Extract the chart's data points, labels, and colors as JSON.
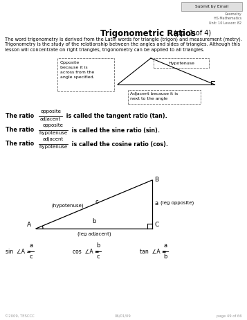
{
  "title_bold": "Trigonometric Ratios",
  "title_normal": " (pp. 1 of 4)",
  "subtitle_top_right": [
    "Geometry",
    "HS Mathematics",
    "Unit: 10 Lesson: 82"
  ],
  "button_text": "Submit by Email",
  "intro_lines": [
    "The word trigonometry is derived from the Latin words for triangle (trigon) and measurement (metry).",
    "Trigonometry is the study of the relationship between the angles and sides of triangles. Although this",
    "lesson will concentrate on right triangles, trigonometry can be applied to all triangles."
  ],
  "ratio1_num": "opposite",
  "ratio1_den": "adjacent",
  "ratio1_suffix": " is called the tangent ratio (tan).",
  "ratio2_num": "opposite",
  "ratio2_den": "hypotenuse",
  "ratio2_suffix": " is called the sine ratio (sin).",
  "ratio3_num": "adjacent",
  "ratio3_den": "hypotenuse",
  "ratio3_suffix": " is called the cosine ratio (cos).",
  "footer_left": "©2009, TESCCC",
  "footer_center": "06/01/09",
  "footer_right": "page 49 of 66",
  "bg_color": "#ffffff",
  "text_color": "#000000",
  "gray_color": "#888888",
  "opp_label": "Opposite\nbecause it is\nacross from the\nangle specified.",
  "hyp_label": "Hypotenuse",
  "adj_label": "Adjacent because it is\nnext to the angle"
}
